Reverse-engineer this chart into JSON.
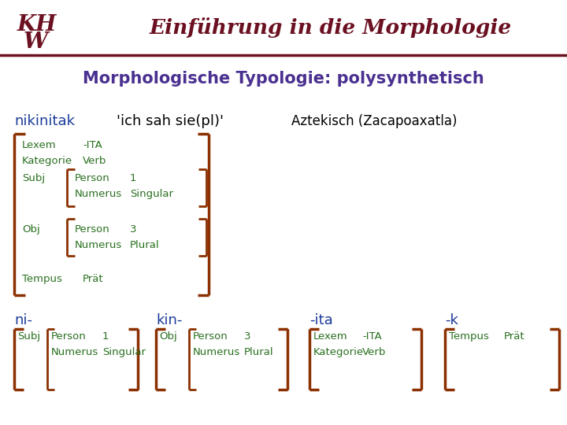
{
  "bg_color": "#ffffff",
  "title_color": "#4a3090",
  "title_text": "Morphologische Typologie: polysynthetisch",
  "header_title": "Einführung in die Morphologie",
  "header_color": "#6b1020",
  "line_color": "#6b1020",
  "blue_color": "#1a3a9a",
  "green_color": "#2a7020",
  "brown_color": "#8b3000",
  "word_nikinitak": "nikinitak",
  "word_meaning": "'ich sah sie(pl)'",
  "word_lang": "Aztekisch (Zacapoaxatla)"
}
